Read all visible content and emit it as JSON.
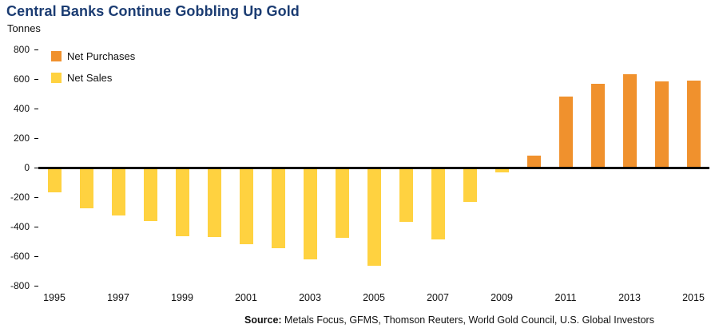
{
  "header": {
    "title": "Central Banks Continue Gobbling Up Gold",
    "subtitle": "Tonnes"
  },
  "legend": {
    "net_purchases": "Net Purchases",
    "net_sales": "Net Sales"
  },
  "source": {
    "label": "Source:",
    "text": " Metals Focus, GFMS, Thomson Reuters, World Gold Council, U.S. Global Investors"
  },
  "colors": {
    "purchases": "#F0912D",
    "sales": "#FFD240",
    "title": "#1B3C72"
  },
  "chart_data": {
    "type": "bar",
    "title": "Central Banks Continue Gobbling Up Gold",
    "ylabel": "Tonnes",
    "xlabel": "",
    "ylim": [
      -800,
      800
    ],
    "yticks": [
      800,
      600,
      400,
      200,
      0,
      -200,
      -400,
      -600,
      -800
    ],
    "x": [
      1995,
      1996,
      1997,
      1998,
      1999,
      2000,
      2001,
      2002,
      2003,
      2004,
      2005,
      2006,
      2007,
      2008,
      2009,
      2010,
      2011,
      2012,
      2013,
      2014,
      2015
    ],
    "values": [
      -170,
      -275,
      -325,
      -360,
      -465,
      -470,
      -520,
      -545,
      -620,
      -475,
      -665,
      -365,
      -485,
      -235,
      -30,
      80,
      480,
      570,
      630,
      585,
      590
    ],
    "xtick_labels": [
      "1995",
      "1997",
      "1999",
      "2001",
      "2003",
      "2005",
      "2007",
      "2009",
      "2011",
      "2013",
      "2015"
    ],
    "legend": [
      "Net Purchases",
      "Net Sales"
    ],
    "legend_position": "top-left",
    "grid": false,
    "series_rule": "positive values rendered as Net Purchases (orange), negative values as Net Sales (yellow)"
  }
}
